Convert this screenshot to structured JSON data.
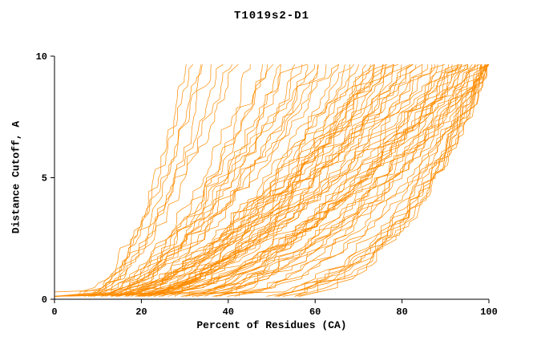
{
  "title": "T1019s2-D1",
  "chart_data": {
    "type": "line",
    "title": "T1019s2-D1",
    "xlabel": "Percent of Residues (CA)",
    "ylabel": "Distance Cutoff, A",
    "xlim": [
      0,
      100
    ],
    "ylim": [
      0,
      10
    ],
    "xticks": [
      0,
      20,
      40,
      60,
      80,
      100
    ],
    "yticks": [
      0,
      5,
      10
    ],
    "grid": false,
    "legend": "none",
    "line_color": "#ff8c00",
    "axis_color": "#000000",
    "n_series": 90,
    "curve_format": [
      "x_start_percent",
      "x_at_top_percent",
      "shape_exponent",
      "seed"
    ],
    "curves": [
      [
        5,
        31,
        0.55,
        1
      ],
      [
        6,
        34,
        0.6,
        2
      ],
      [
        6,
        30,
        0.5,
        3
      ],
      [
        7,
        38,
        0.6,
        4
      ],
      [
        5,
        36,
        0.5,
        5
      ],
      [
        8,
        42,
        0.65,
        6
      ],
      [
        7,
        33,
        0.55,
        7
      ],
      [
        6,
        40,
        0.6,
        8
      ],
      [
        6,
        46,
        0.55,
        9
      ],
      [
        7,
        50,
        0.6,
        10
      ],
      [
        8,
        48,
        0.5,
        11
      ],
      [
        9,
        55,
        0.65,
        12
      ],
      [
        7,
        58,
        0.6,
        13
      ],
      [
        10,
        52,
        0.55,
        14
      ],
      [
        8,
        60,
        0.7,
        15
      ],
      [
        11,
        57,
        0.6,
        16
      ],
      [
        9,
        62,
        0.65,
        17
      ],
      [
        12,
        64,
        0.7,
        18
      ],
      [
        10,
        59,
        0.55,
        19
      ],
      [
        7,
        53,
        0.5,
        20
      ],
      [
        13,
        61,
        0.6,
        21
      ],
      [
        11,
        65,
        0.65,
        22
      ],
      [
        9,
        49,
        0.55,
        23
      ],
      [
        8,
        66,
        0.5,
        24
      ],
      [
        10,
        68,
        0.55,
        25
      ],
      [
        12,
        70,
        0.6,
        26
      ],
      [
        14,
        72,
        0.65,
        27
      ],
      [
        9,
        74,
        0.55,
        28
      ],
      [
        11,
        76,
        0.6,
        29
      ],
      [
        13,
        78,
        0.65,
        30
      ],
      [
        15,
        80,
        0.7,
        31
      ],
      [
        10,
        82,
        0.6,
        32
      ],
      [
        12,
        84,
        0.65,
        33
      ],
      [
        16,
        79,
        0.7,
        34
      ],
      [
        18,
        81,
        0.6,
        35
      ],
      [
        14,
        83,
        0.55,
        36
      ],
      [
        17,
        75,
        0.6,
        37
      ],
      [
        19,
        77,
        0.65,
        38
      ],
      [
        20,
        85,
        0.7,
        39
      ],
      [
        15,
        73,
        0.5,
        40
      ],
      [
        13,
        69,
        0.55,
        41
      ],
      [
        16,
        71,
        0.6,
        42
      ],
      [
        18,
        84,
        0.65,
        43
      ],
      [
        11,
        80,
        0.5,
        44
      ],
      [
        14,
        76,
        0.55,
        45
      ],
      [
        21,
        82,
        0.6,
        46
      ],
      [
        22,
        78,
        0.65,
        47
      ],
      [
        12,
        74,
        0.6,
        48
      ],
      [
        12,
        86,
        0.5,
        49
      ],
      [
        14,
        88,
        0.55,
        50
      ],
      [
        16,
        90,
        0.6,
        51
      ],
      [
        18,
        92,
        0.65,
        52
      ],
      [
        20,
        94,
        0.7,
        53
      ],
      [
        22,
        96,
        0.6,
        54
      ],
      [
        24,
        98,
        0.55,
        55
      ],
      [
        26,
        100,
        0.5,
        56
      ],
      [
        15,
        87,
        0.6,
        57
      ],
      [
        17,
        89,
        0.65,
        58
      ],
      [
        19,
        91,
        0.55,
        59
      ],
      [
        21,
        93,
        0.6,
        60
      ],
      [
        23,
        95,
        0.65,
        61
      ],
      [
        25,
        97,
        0.6,
        62
      ],
      [
        27,
        99,
        0.55,
        63
      ],
      [
        29,
        100,
        0.5,
        64
      ],
      [
        13,
        90,
        0.45,
        65
      ],
      [
        16,
        94,
        0.5,
        66
      ],
      [
        18,
        96,
        0.55,
        67
      ],
      [
        20,
        98,
        0.6,
        68
      ],
      [
        22,
        100,
        0.5,
        69
      ],
      [
        24,
        92,
        0.55,
        70
      ],
      [
        26,
        94,
        0.6,
        71
      ],
      [
        28,
        96,
        0.65,
        72
      ],
      [
        30,
        98,
        0.6,
        73
      ],
      [
        32,
        100,
        0.55,
        74
      ],
      [
        34,
        97,
        0.5,
        75
      ],
      [
        31,
        95,
        0.55,
        76
      ],
      [
        33,
        99,
        0.6,
        77
      ],
      [
        35,
        100,
        0.5,
        78
      ],
      [
        28,
        100,
        0.4,
        79
      ],
      [
        32,
        100,
        0.42,
        80
      ],
      [
        36,
        100,
        0.38,
        81
      ],
      [
        40,
        100,
        0.4,
        82
      ],
      [
        44,
        100,
        0.42,
        83
      ],
      [
        38,
        100,
        0.36,
        84
      ],
      [
        42,
        100,
        0.4,
        85
      ],
      [
        46,
        100,
        0.38,
        86
      ],
      [
        48,
        100,
        0.4,
        87
      ],
      [
        50,
        100,
        0.42,
        88
      ],
      [
        37,
        98,
        0.38,
        89
      ],
      [
        45,
        99,
        0.4,
        90
      ]
    ]
  }
}
